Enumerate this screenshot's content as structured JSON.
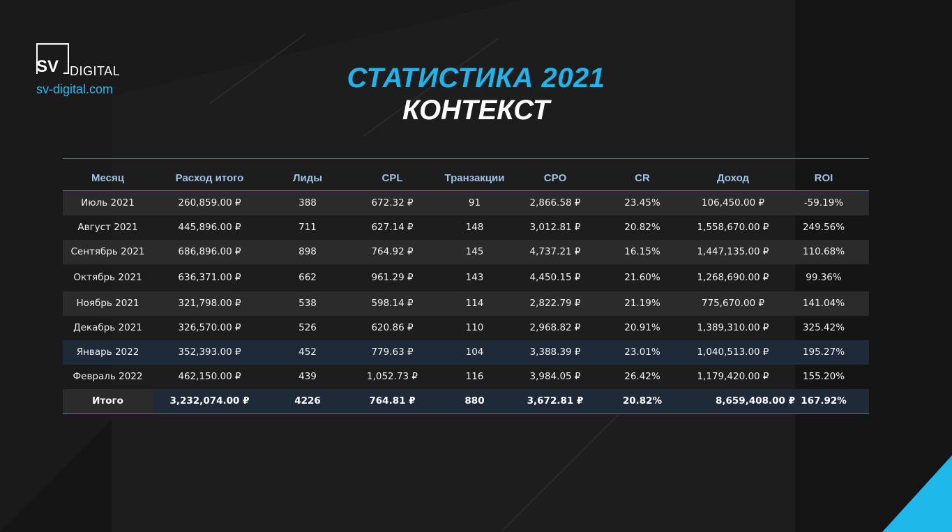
{
  "logo": {
    "mark": "SV",
    "name": "DIGITAL",
    "url": "sv-digital.com"
  },
  "title": "СТАТИСТИКА 2021",
  "subtitle": "КОНТЕКСТ",
  "colors": {
    "accent": "#21b4ea",
    "header_text": "#9cc3e4",
    "background": "#151515"
  },
  "table": {
    "headers": [
      "Месяц",
      "Расход итого",
      "Лиды",
      "CPL",
      "Транзакции",
      "CPO",
      "CR",
      "Доход",
      "ROI"
    ],
    "rows": [
      [
        "Июль 2021",
        "260,859.00 ₽",
        "388",
        "672.32 ₽",
        "91",
        "2,866.58 ₽",
        "23.45%",
        "106,450.00 ₽",
        "-59.19%"
      ],
      [
        "Август 2021",
        "445,896.00 ₽",
        "711",
        "627.14 ₽",
        "148",
        "3,012.81 ₽",
        "20.82%",
        "1,558,670.00 ₽",
        "249.56%"
      ],
      [
        "Сентябрь 2021",
        "686,896.00 ₽",
        "898",
        "764.92 ₽",
        "145",
        "4,737.21 ₽",
        "16.15%",
        "1,447,135.00 ₽",
        "110.68%"
      ],
      [
        "Октябрь 2021",
        "636,371.00 ₽",
        "662",
        "961.29 ₽",
        "143",
        "4,450.15 ₽",
        "21.60%",
        "1,268,690.00 ₽",
        "99.36%"
      ],
      [
        "Ноябрь 2021",
        "321,798.00 ₽",
        "538",
        "598.14 ₽",
        "114",
        "2,822.79 ₽",
        "21.19%",
        "775,670.00 ₽",
        "141.04%"
      ],
      [
        "Декабрь 2021",
        "326,570.00 ₽",
        "526",
        "620.86 ₽",
        "110",
        "2,968.82 ₽",
        "20.91%",
        "1,389,310.00 ₽",
        "325.42%"
      ],
      [
        "Январь 2022",
        "352,393.00 ₽",
        "452",
        "779.63 ₽",
        "104",
        "3,388.39 ₽",
        "23.01%",
        "1,040,513.00 ₽",
        "195.27%"
      ],
      [
        "Февраль 2022",
        "462,150.00 ₽",
        "439",
        "1,052.73 ₽",
        "116",
        "3,984.05 ₽",
        "26.42%",
        "1,179,420.00 ₽",
        "155.20%"
      ]
    ],
    "total": [
      "Итого",
      "3,232,074.00 ₽",
      "4226",
      "764.81 ₽",
      "880",
      "3,672.81 ₽",
      "20.82%",
      "8,659,408.00 ₽",
      "167.92%"
    ]
  }
}
